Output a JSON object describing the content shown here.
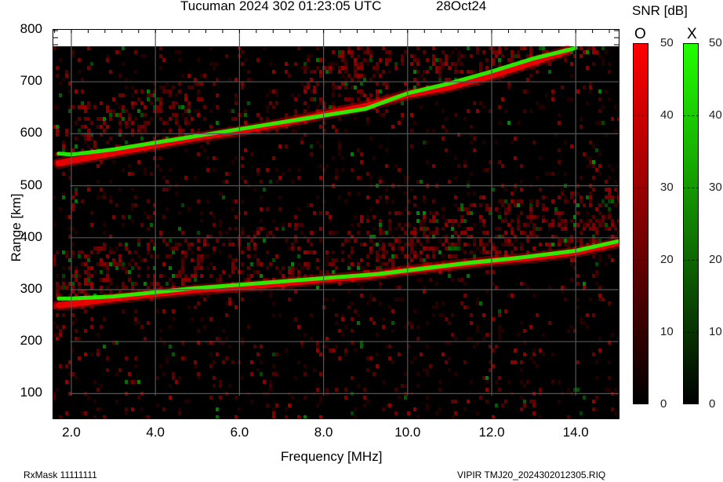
{
  "header": {
    "title": "Tucuman 2024 302 01:23:05 UTC",
    "date": "28Oct24"
  },
  "footer": {
    "left": "RxMask 11111111",
    "right": "VIPIR  TMJ20_2024302012305.RIQ"
  },
  "colorbar": {
    "title": "SNR [dB]",
    "o_label": "O",
    "x_label": "X",
    "o_color_max": "#ff0000",
    "x_color_max": "#22ff00",
    "ticks": [
      "50",
      "40",
      "30",
      "20",
      "10",
      "0"
    ]
  },
  "chart_data": {
    "type": "heatmap",
    "title": "Tucuman 2024 302 01:23:05 UTC  28Oct24",
    "xlabel": "Frequency [MHz]",
    "ylabel": "Range [km]",
    "xlim": [
      1.57,
      15.0
    ],
    "ylim": [
      50,
      800
    ],
    "x_ticks": [
      "2.0",
      "4.0",
      "6.0",
      "8.0",
      "10.0",
      "12.0",
      "14.0"
    ],
    "y_ticks": [
      "800",
      "700",
      "600",
      "500",
      "400",
      "300",
      "200",
      "100"
    ],
    "grid": true,
    "colorbar": {
      "label": "SNR [dB]",
      "range": [
        0,
        50
      ],
      "ticks": [
        0,
        10,
        20,
        30,
        40,
        50
      ]
    },
    "series": [
      {
        "name": "O-mode first hop trace",
        "color": "#ff0000",
        "x": [
          1.7,
          2.0,
          3.0,
          4.0,
          5.0,
          6.0,
          7.0,
          8.0,
          9.0,
          10.0,
          11.0,
          12.0,
          13.0,
          14.0,
          15.0
        ],
        "y": [
          270,
          272,
          283,
          292,
          300,
          305,
          312,
          320,
          326,
          337,
          346,
          355,
          362,
          372,
          390
        ]
      },
      {
        "name": "X-mode first hop trace",
        "color": "#22ff00",
        "x": [
          1.7,
          2.0,
          3.0,
          4.0,
          4.8,
          8.0,
          9.3,
          11.5,
          12.5,
          13.0,
          14.0,
          15.0
        ],
        "y": [
          283,
          283,
          287,
          295,
          302,
          322,
          330,
          352,
          360,
          365,
          375,
          393
        ]
      },
      {
        "name": "O-mode second hop trace",
        "color": "#ff0000",
        "x": [
          1.7,
          2.0,
          3.0,
          4.0,
          5.0,
          6.0,
          7.0,
          8.0,
          9.0,
          10.0,
          11.0,
          12.0,
          13.0,
          13.8
        ],
        "y": [
          543,
          548,
          563,
          578,
          593,
          605,
          620,
          637,
          653,
          675,
          690,
          712,
          738,
          760
        ]
      },
      {
        "name": "X-mode second hop trace",
        "color": "#22ff00",
        "x": [
          1.7,
          2.0,
          3.0,
          4.0,
          9.0,
          10.0,
          11.0,
          12.0,
          13.0,
          14.0
        ],
        "y": [
          562,
          560,
          570,
          583,
          648,
          678,
          697,
          720,
          745,
          765
        ]
      }
    ]
  }
}
